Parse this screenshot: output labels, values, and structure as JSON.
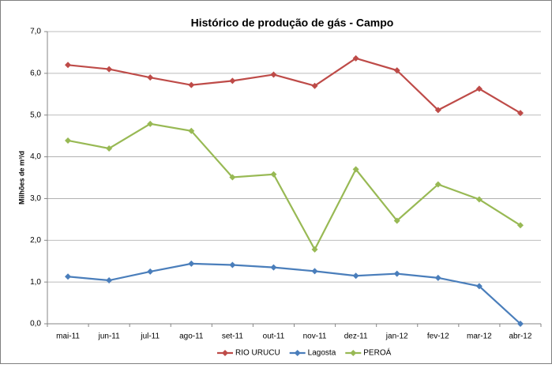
{
  "chart_data": {
    "type": "line",
    "title": "Histórico de produção de gás - Campo",
    "y_label": "Milhões de m³/d",
    "categories": [
      "mai-11",
      "jun-11",
      "jul-11",
      "ago-11",
      "set-11",
      "out-11",
      "nov-11",
      "dez-11",
      "jan-12",
      "fev-12",
      "mar-12",
      "abr-12"
    ],
    "series": [
      {
        "name": "RIO URUCU",
        "color": "#be4b48",
        "values": [
          6.2,
          6.1,
          5.9,
          5.72,
          5.82,
          5.97,
          5.7,
          6.36,
          6.07,
          5.12,
          5.63,
          5.05
        ]
      },
      {
        "name": "Lagosta",
        "color": "#4a7ebb",
        "values": [
          1.13,
          1.04,
          1.25,
          1.44,
          1.41,
          1.35,
          1.26,
          1.15,
          1.2,
          1.1,
          0.9,
          0.0
        ]
      },
      {
        "name": "PEROÁ",
        "color": "#98b954",
        "values": [
          4.39,
          4.2,
          4.79,
          4.62,
          3.51,
          3.58,
          1.78,
          3.7,
          2.47,
          3.34,
          2.98,
          2.36
        ]
      }
    ],
    "ylim": [
      0,
      7
    ],
    "yticks": [
      {
        "value": 0,
        "label": "0,0"
      },
      {
        "value": 1,
        "label": "1,0"
      },
      {
        "value": 2,
        "label": "2,0"
      },
      {
        "value": 3,
        "label": "3,0"
      },
      {
        "value": 4,
        "label": "4,0"
      },
      {
        "value": 5,
        "label": "5,0"
      },
      {
        "value": 6,
        "label": "6,0"
      },
      {
        "value": 7,
        "label": "7,0"
      }
    ],
    "grid": true,
    "legend": "bottom"
  }
}
